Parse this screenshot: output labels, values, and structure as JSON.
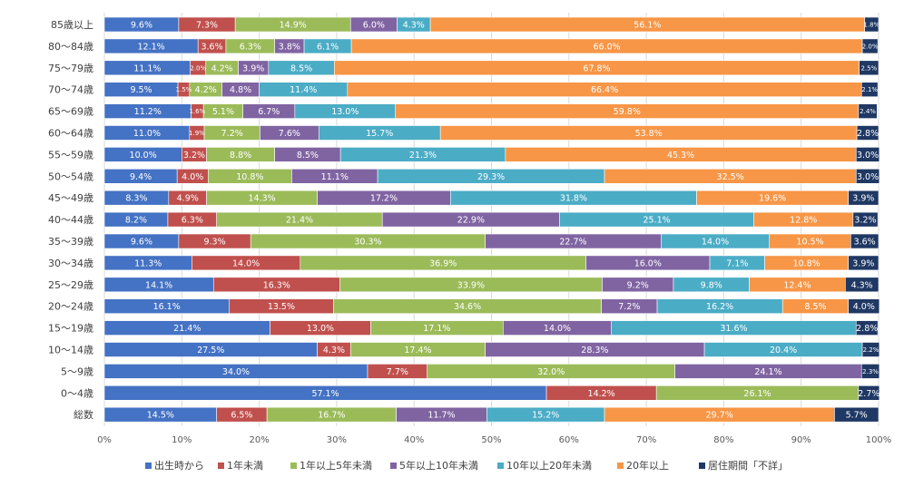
{
  "chart_data": {
    "type": "bar",
    "orientation": "horizontal",
    "stacked": "percent",
    "categories": [
      "85歳以上",
      "80～84歳",
      "75～79歳",
      "70～74歳",
      "65～69歳",
      "60～64歳",
      "55～59歳",
      "50～54歳",
      "45～49歳",
      "40～44歳",
      "35～39歳",
      "30～34歳",
      "25～29歳",
      "20～24歳",
      "15～19歳",
      "10～14歳",
      "5～9歳",
      "0～4歳",
      "総数"
    ],
    "series": [
      {
        "name": "出生時から",
        "color": "#4472C4",
        "values": [
          9.6,
          12.1,
          11.1,
          9.5,
          11.2,
          11.0,
          10.0,
          9.4,
          8.3,
          8.2,
          9.6,
          11.3,
          14.1,
          16.1,
          21.4,
          27.5,
          34.0,
          57.1,
          14.5
        ]
      },
      {
        "name": "1年未満",
        "color": "#C0504D",
        "values": [
          7.3,
          3.6,
          2.0,
          1.5,
          1.6,
          1.9,
          3.2,
          4.0,
          4.9,
          6.3,
          9.3,
          14.0,
          16.3,
          13.5,
          13.0,
          4.3,
          7.7,
          14.2,
          6.5
        ]
      },
      {
        "name": "1年以上5年未満",
        "color": "#9BBB59",
        "values": [
          14.9,
          6.3,
          4.2,
          4.2,
          5.1,
          7.2,
          8.8,
          10.8,
          14.3,
          21.4,
          30.3,
          36.9,
          33.9,
          34.6,
          17.1,
          17.4,
          32.0,
          26.1,
          16.7
        ]
      },
      {
        "name": "5年以上10年未満",
        "color": "#8064A2",
        "values": [
          6.0,
          3.8,
          3.9,
          4.8,
          6.7,
          7.6,
          8.5,
          11.1,
          17.2,
          22.9,
          22.7,
          16.0,
          9.2,
          7.2,
          14.0,
          28.3,
          24.1,
          null,
          11.7
        ]
      },
      {
        "name": "10年以上20年未満",
        "color": "#4BACC6",
        "values": [
          4.3,
          6.1,
          8.5,
          11.4,
          13.0,
          15.7,
          21.3,
          29.3,
          31.8,
          25.1,
          14.0,
          7.1,
          9.8,
          16.2,
          31.6,
          20.4,
          null,
          null,
          15.2
        ]
      },
      {
        "name": "20年以上",
        "color": "#F79646",
        "values": [
          56.1,
          66.0,
          67.8,
          66.4,
          59.8,
          53.8,
          45.3,
          32.5,
          19.6,
          12.8,
          10.5,
          10.8,
          12.4,
          8.5,
          null,
          null,
          null,
          null,
          29.7
        ]
      },
      {
        "name": "居住期間「不詳」",
        "color": "#1F3864",
        "values": [
          1.8,
          2.0,
          2.5,
          2.1,
          2.4,
          2.8,
          3.0,
          3.0,
          3.9,
          3.2,
          3.6,
          3.9,
          4.3,
          4.0,
          2.8,
          2.2,
          2.3,
          2.7,
          5.7
        ]
      }
    ],
    "x_axis": {
      "range": [
        0,
        100
      ],
      "ticks": [
        "0%",
        "10%",
        "20%",
        "30%",
        "40%",
        "50%",
        "60%",
        "70%",
        "80%",
        "90%",
        "100%"
      ]
    },
    "grid": true,
    "legend_position": "bottom"
  }
}
